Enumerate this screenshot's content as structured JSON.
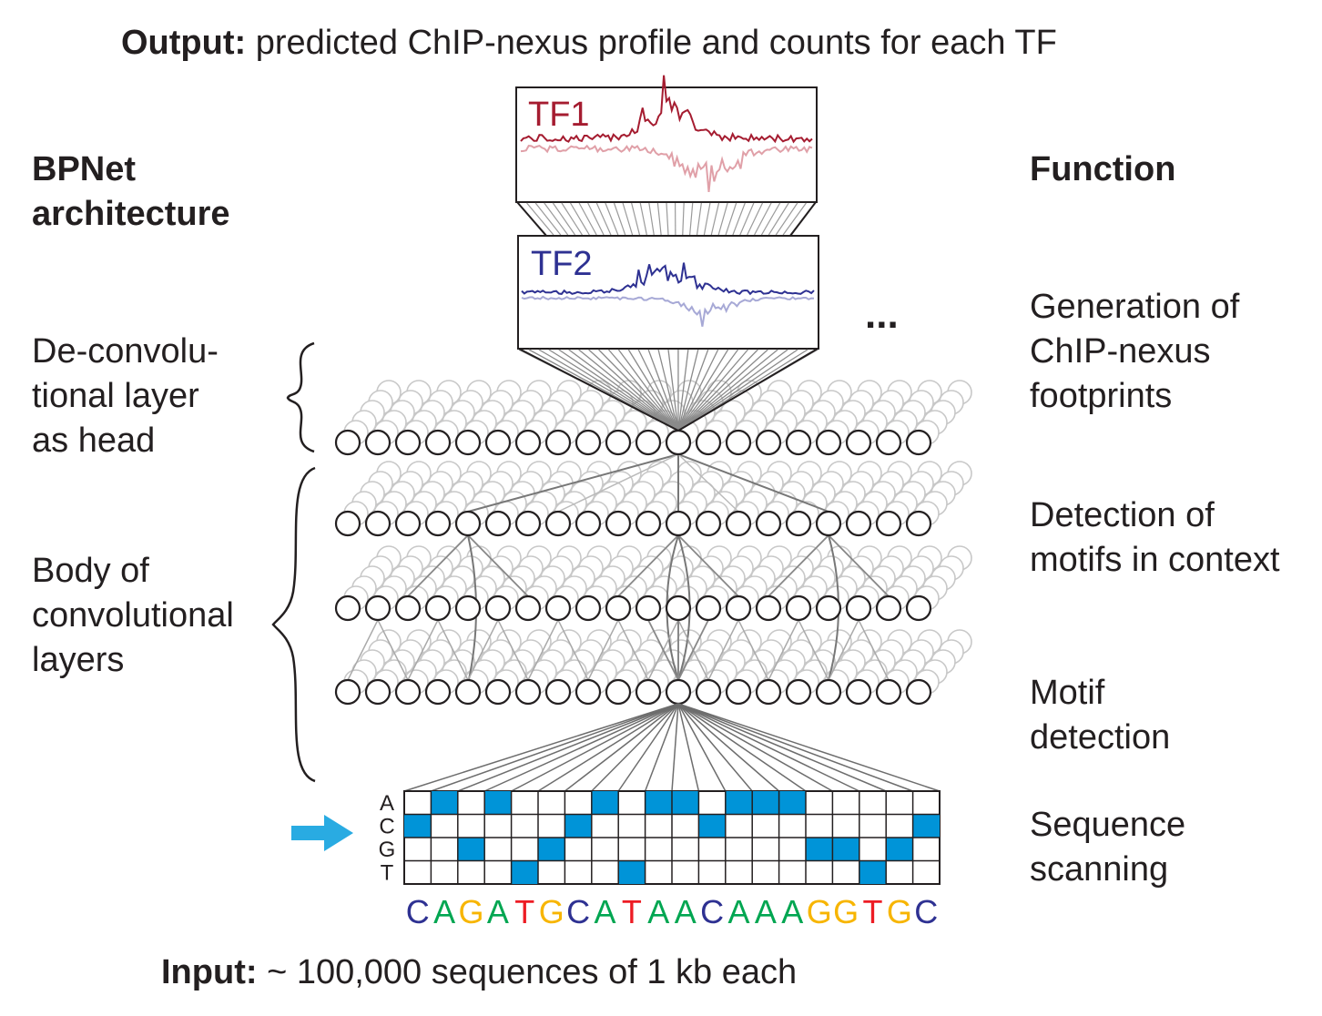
{
  "header": {
    "output_label": "Output:",
    "output_text": " predicted ChIP-nexus profile and counts for each TF"
  },
  "left_column": {
    "title_line1": "BPNet",
    "title_line2": "architecture",
    "head_label": [
      "De-convolu-",
      "tional layer",
      "as head"
    ],
    "body_label": [
      "Body of",
      "convolutional",
      "layers"
    ]
  },
  "right_column": {
    "title": "Function",
    "footprints": [
      "Generation of",
      "ChIP-nexus",
      "footprints"
    ],
    "motifs_context": [
      "Detection of",
      "motifs in context"
    ],
    "motif_detection": [
      "Motif",
      "detection"
    ],
    "scanning": [
      "Sequence",
      "scanning"
    ]
  },
  "tracks": [
    {
      "label": "TF1",
      "color": "#a51c30",
      "light_color": "#e0a0a8"
    },
    {
      "label": "TF2",
      "color": "#2e3192",
      "light_color": "#a7a9d6"
    }
  ],
  "ellipsis": "...",
  "onehot": {
    "rows": [
      "A",
      "C",
      "G",
      "T"
    ],
    "sequence": [
      "C",
      "A",
      "G",
      "A",
      "T",
      "G",
      "C",
      "A",
      "T",
      "A",
      "A",
      "C",
      "A",
      "A",
      "A",
      "G",
      "G",
      "T",
      "G",
      "C"
    ],
    "base_colors": {
      "A": "#00a651",
      "C": "#2e3192",
      "G": "#f7b500",
      "T": "#ed1c24"
    },
    "fill_color": "#0094d8"
  },
  "footer": {
    "input_label": "Input:",
    "input_text": " ~ 100,000 sequences  of 1 kb each"
  }
}
